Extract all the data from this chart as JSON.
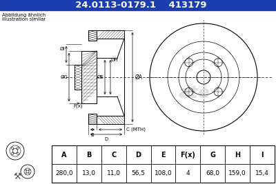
{
  "part_number": "24.0113-0179.1",
  "ref_number": "413179",
  "header_bg": "#1a3eb0",
  "header_text_color": "#ffffff",
  "note_line1": "Abbildung ähnlich",
  "note_line2": "Illustration similar",
  "table_headers": [
    "A",
    "B",
    "C",
    "D",
    "E",
    "F(x)",
    "G",
    "H",
    "I"
  ],
  "table_values": [
    "280,0",
    "13,0",
    "11,0",
    "56,5",
    "108,0",
    "4",
    "68,0",
    "159,0",
    "15,4"
  ],
  "bg_color": "#ffffff",
  "font_color": "#000000"
}
